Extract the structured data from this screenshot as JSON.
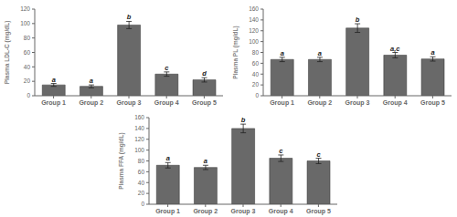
{
  "chart_data": [
    {
      "type": "bar",
      "categories": [
        "Group 1",
        "Group 2",
        "Group 3",
        "Group 4",
        "Group 5"
      ],
      "values": [
        15,
        13,
        98,
        30,
        22
      ],
      "errors": [
        2,
        2,
        5,
        3,
        3
      ],
      "annotations": [
        "a",
        "a",
        "b",
        "c",
        "d"
      ],
      "ylabel": "Plasma LDL-C (mg/dL)",
      "ylim": [
        0,
        120
      ],
      "yticks": [
        0,
        20,
        40,
        60,
        80,
        100,
        120
      ],
      "color": "#696969",
      "grid": false
    },
    {
      "type": "bar",
      "categories": [
        "Group 1",
        "Group 2",
        "Group 3",
        "Group 4",
        "Group 5"
      ],
      "values": [
        67,
        67,
        125,
        75,
        68
      ],
      "errors": [
        4,
        4,
        8,
        5,
        4
      ],
      "annotations": [
        "a",
        "a",
        "b",
        "a,c",
        "a"
      ],
      "ylabel": "Plasma PL (mg/dL)",
      "ylim": [
        0,
        160
      ],
      "yticks": [
        0,
        20,
        40,
        60,
        80,
        100,
        120,
        140,
        160
      ],
      "color": "#696969",
      "grid": false
    },
    {
      "type": "bar",
      "categories": [
        "Group 1",
        "Group 2",
        "Group 3",
        "Group 4",
        "Group 5"
      ],
      "values": [
        72,
        68,
        140,
        85,
        80
      ],
      "errors": [
        5,
        4,
        8,
        6,
        5
      ],
      "annotations": [
        "a",
        "a",
        "b",
        "c",
        "c"
      ],
      "ylabel": "Plasma FFA (mg/dL)",
      "ylim": [
        0,
        160
      ],
      "yticks": [
        0,
        20,
        40,
        60,
        80,
        100,
        120,
        140,
        160
      ],
      "color": "#696969",
      "grid": false
    }
  ]
}
